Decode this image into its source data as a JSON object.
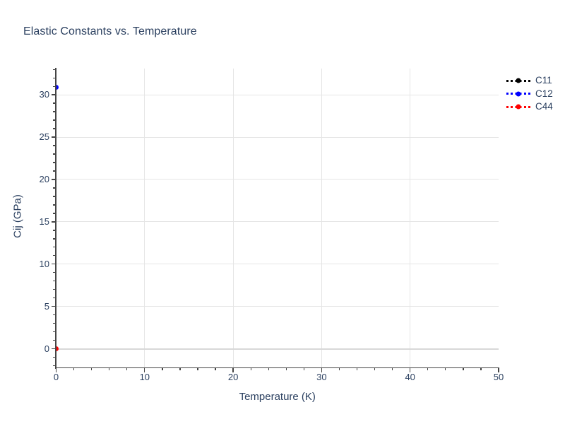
{
  "chart_data": {
    "type": "scatter",
    "title": "Elastic Constants vs. Temperature",
    "xlabel": "Temperature (K)",
    "ylabel": "Cij (GPa)",
    "xlim": [
      0,
      50
    ],
    "ylim": [
      -2.2,
      33.1
    ],
    "x_ticks": [
      0,
      10,
      20,
      30,
      40,
      50
    ],
    "x_minor_tick_step": 2,
    "y_ticks": [
      0,
      5,
      10,
      15,
      20,
      25,
      30
    ],
    "y_minor_tick_step": 1,
    "grid": true,
    "gridlines_x": [
      10,
      20,
      30,
      40
    ],
    "gridlines_y": [
      0,
      5,
      10,
      15,
      20,
      25,
      30
    ],
    "legend_position": "top-right-outside",
    "series": [
      {
        "name": "C11",
        "color": "#000000",
        "line_style": "dashed",
        "marker": "circle",
        "points": []
      },
      {
        "name": "C12",
        "color": "#0000ff",
        "line_style": "dashed",
        "marker": "circle",
        "points": [
          {
            "x": 0,
            "y": 30.9
          }
        ]
      },
      {
        "name": "C44",
        "color": "#ff0000",
        "line_style": "dashed",
        "marker": "circle",
        "points": [
          {
            "x": 0,
            "y": 0
          }
        ]
      }
    ],
    "colors": {
      "text": "#2a3f5f",
      "axis_line": "#444444",
      "gridline": "#e5e5e5",
      "zeroline": "#d8d8d8",
      "background": "#ffffff"
    }
  }
}
